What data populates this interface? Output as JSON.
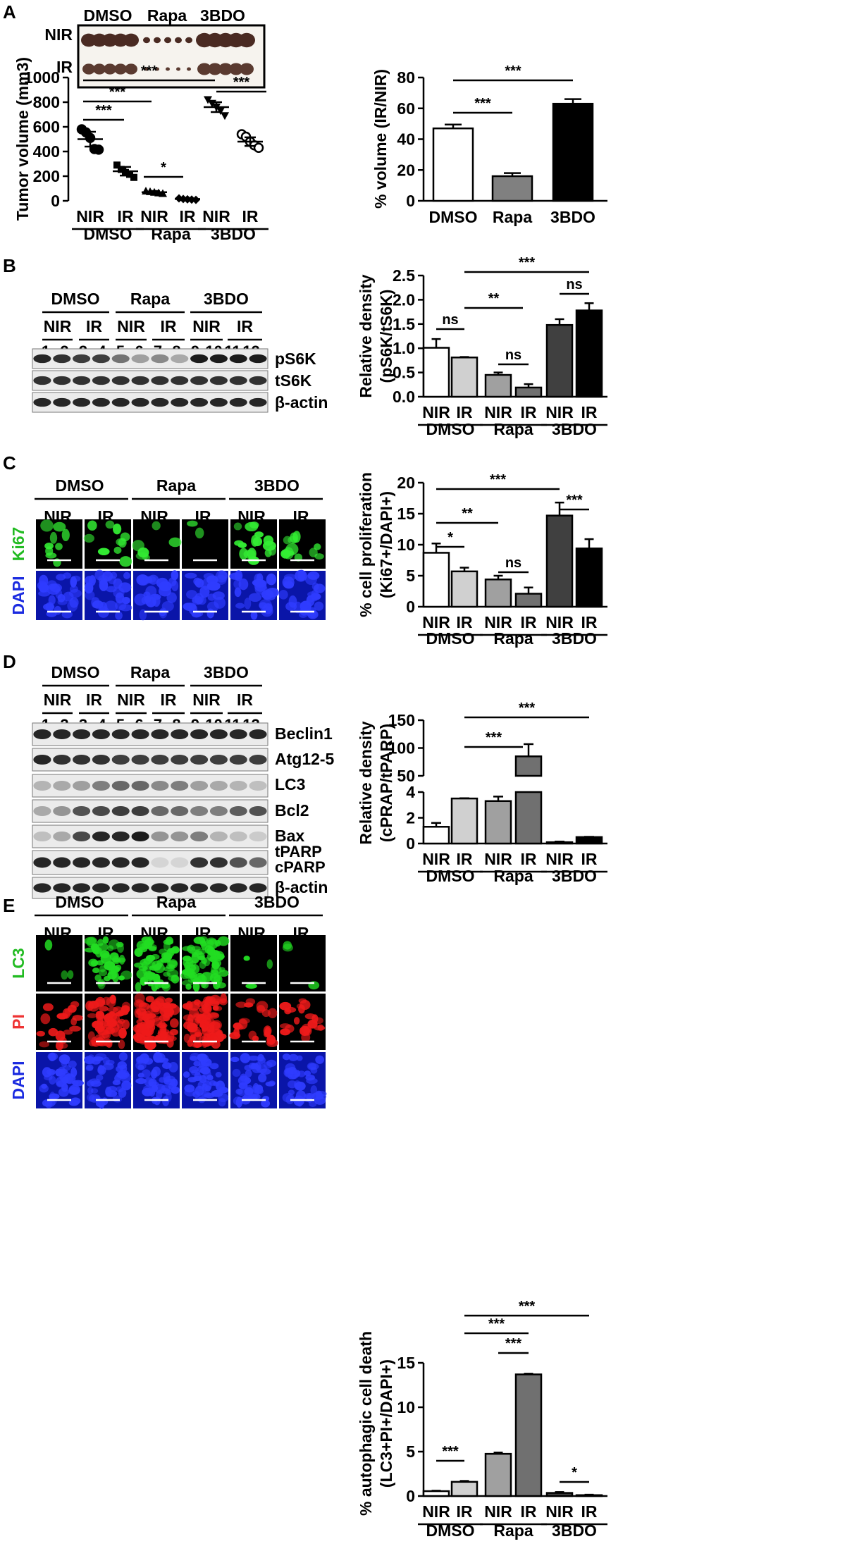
{
  "panels": {
    "A": {
      "letter": "A",
      "photo": {
        "groups": [
          "DMSO",
          "Rapa",
          "3BDO"
        ],
        "rows": [
          "NIR",
          "IR"
        ]
      },
      "scatter": {
        "ylabel": "Tumor volume (mm3)",
        "yticks": [
          "0",
          "200",
          "400",
          "600",
          "800",
          "1000"
        ],
        "xlabels": [
          "NIR",
          "IR",
          "NIR",
          "IR",
          "NIR",
          "IR"
        ],
        "groups": [
          "DMSO",
          "Rapa",
          "3BDO"
        ],
        "sig": [
          "***",
          "***",
          "***",
          "*",
          "***"
        ]
      },
      "bar": {
        "ylabel": "% volume (IR/NIR)",
        "yticks": [
          "0",
          "20",
          "40",
          "60",
          "80"
        ],
        "categories": [
          "DMSO",
          "Rapa",
          "3BDO"
        ],
        "sig": [
          "***",
          "***"
        ]
      }
    },
    "B": {
      "letter": "B",
      "blot": {
        "groups": [
          "DMSO",
          "Rapa",
          "3BDO"
        ],
        "sub": [
          "NIR",
          "IR",
          "NIR",
          "IR",
          "NIR",
          "IR"
        ],
        "lanes": [
          "1",
          "2",
          "3",
          "4",
          "5",
          "6",
          "7",
          "8",
          "9",
          "10",
          "11",
          "12"
        ],
        "bands": [
          "pS6K",
          "tS6K",
          "β-actin"
        ]
      },
      "bar": {
        "ylabel1": "Relative density",
        "ylabel2": "(pS6K/tS6K)",
        "yticks": [
          "0.0",
          "0.5",
          "1.0",
          "1.5",
          "2.0",
          "2.5"
        ],
        "xlabels": [
          "NIR",
          "IR",
          "NIR",
          "IR",
          "NIR",
          "IR"
        ],
        "groups": [
          "DMSO",
          "Rapa",
          "3BDO"
        ],
        "sig": [
          "ns",
          "**",
          "ns",
          "***",
          "ns"
        ]
      }
    },
    "C": {
      "letter": "C",
      "images": {
        "groups": [
          "DMSO",
          "Rapa",
          "3BDO"
        ],
        "sub": [
          "NIR",
          "IR",
          "NIR",
          "IR",
          "NIR",
          "IR"
        ],
        "rows": [
          "Ki67",
          "DAPI"
        ]
      },
      "bar": {
        "ylabel1": "% cell proliferation",
        "ylabel2": "(Ki67+/DAPI+)",
        "yticks": [
          "0",
          "5",
          "10",
          "15",
          "20"
        ],
        "xlabels": [
          "NIR",
          "IR",
          "NIR",
          "IR",
          "NIR",
          "IR"
        ],
        "groups": [
          "DMSO",
          "Rapa",
          "3BDO"
        ],
        "sig": [
          "*",
          "**",
          "ns",
          "***",
          "***"
        ]
      }
    },
    "D": {
      "letter": "D",
      "blot": {
        "groups": [
          "DMSO",
          "Rapa",
          "3BDO"
        ],
        "sub": [
          "NIR",
          "IR",
          "NIR",
          "IR",
          "NIR",
          "IR"
        ],
        "lanes": [
          "1",
          "2",
          "3",
          "4",
          "5",
          "6",
          "7",
          "8",
          "9",
          "10",
          "11",
          "12"
        ],
        "bands": [
          "Beclin1",
          "Atg12-5",
          "LC3",
          "Bcl2",
          "Bax",
          "tPARP",
          "cPARP",
          "β-actin"
        ]
      },
      "bar": {
        "ylabel1": "Relative density",
        "ylabel2": "(cPRAP/tPARP)",
        "yticks_low": [
          "0",
          "2",
          "4"
        ],
        "yticks_high": [
          "50",
          "100",
          "150"
        ],
        "xlabels": [
          "NIR",
          "IR",
          "NIR",
          "IR",
          "NIR",
          "IR"
        ],
        "groups": [
          "DMSO",
          "Rapa",
          "3BDO"
        ],
        "sig": [
          "***",
          "***"
        ]
      }
    },
    "E": {
      "letter": "E",
      "images": {
        "groups": [
          "DMSO",
          "Rapa",
          "3BDO"
        ],
        "sub": [
          "NIR",
          "IR",
          "NIR",
          "IR",
          "NIR",
          "IR"
        ],
        "rows": [
          "LC3",
          "PI",
          "DAPI"
        ]
      },
      "bar": {
        "ylabel1": "% autophagic cell death",
        "ylabel2": "(LC3+PI+/DAPI+)",
        "yticks": [
          "0",
          "5",
          "10",
          "15"
        ],
        "xlabels": [
          "NIR",
          "IR",
          "NIR",
          "IR",
          "NIR",
          "IR"
        ],
        "groups": [
          "DMSO",
          "Rapa",
          "3BDO"
        ],
        "sig": [
          "***",
          "***",
          "***",
          "***",
          "*"
        ]
      }
    }
  },
  "chart_data": [
    {
      "id": "A-scatter",
      "type": "scatter",
      "ylabel": "Tumor volume (mm3)",
      "ylim": [
        0,
        1000
      ],
      "categories": [
        "NIR",
        "IR",
        "NIR",
        "IR",
        "NIR",
        "IR"
      ],
      "groups": [
        "DMSO",
        "Rapa",
        "3BDO"
      ],
      "means": [
        500,
        240,
        70,
        15,
        760,
        480
      ],
      "errors": [
        60,
        35,
        10,
        8,
        40,
        35
      ],
      "points": [
        [
          580,
          555,
          510,
          420,
          415
        ],
        [
          290,
          255,
          230,
          215,
          190
        ],
        [
          80,
          75,
          70,
          65,
          60
        ],
        [
          20,
          15,
          12,
          10,
          8
        ],
        [
          820,
          790,
          760,
          730,
          690
        ],
        [
          540,
          520,
          480,
          450,
          430
        ]
      ],
      "markers": [
        "circle",
        "square",
        "triangle",
        "diamond",
        "triangle-down",
        "circle-open"
      ]
    },
    {
      "id": "A-bar",
      "type": "bar",
      "ylabel": "% volume (IR/NIR)",
      "ylim": [
        0,
        80
      ],
      "categories": [
        "DMSO",
        "Rapa",
        "3BDO"
      ],
      "values": [
        47,
        16,
        63
      ],
      "errors": [
        2.5,
        2.0,
        3.0
      ],
      "colors": [
        "#ffffff",
        "#808080",
        "#000000"
      ]
    },
    {
      "id": "B-bar",
      "type": "bar",
      "ylabel": "Relative density (pS6K/tS6K)",
      "ylim": [
        0,
        2.5
      ],
      "categories": [
        "NIR",
        "IR",
        "NIR",
        "IR",
        "NIR",
        "IR"
      ],
      "groups": [
        "DMSO",
        "Rapa",
        "3BDO"
      ],
      "values": [
        1.01,
        0.81,
        0.45,
        0.19,
        1.48,
        1.78
      ],
      "errors": [
        0.18,
        0.01,
        0.05,
        0.07,
        0.12,
        0.15
      ],
      "colors": [
        "#ffffff",
        "#d0d0d0",
        "#a0a0a0",
        "#707070",
        "#404040",
        "#000000"
      ]
    },
    {
      "id": "C-bar",
      "type": "bar",
      "ylabel": "% cell proliferation (Ki67+/DAPI+)",
      "ylim": [
        0,
        20
      ],
      "categories": [
        "NIR",
        "IR",
        "NIR",
        "IR",
        "NIR",
        "IR"
      ],
      "groups": [
        "DMSO",
        "Rapa",
        "3BDO"
      ],
      "values": [
        8.7,
        5.7,
        4.4,
        2.1,
        14.7,
        9.4
      ],
      "errors": [
        1.5,
        0.6,
        0.6,
        1.0,
        2.1,
        1.5
      ],
      "colors": [
        "#ffffff",
        "#d0d0d0",
        "#a0a0a0",
        "#707070",
        "#404040",
        "#000000"
      ]
    },
    {
      "id": "D-bar",
      "type": "bar",
      "ylabel": "Relative density (cPRAP/tPARP)",
      "ylim": [
        0,
        150
      ],
      "axis_break": [
        4,
        50
      ],
      "categories": [
        "NIR",
        "IR",
        "NIR",
        "IR",
        "NIR",
        "IR"
      ],
      "groups": [
        "DMSO",
        "Rapa",
        "3BDO"
      ],
      "values": [
        1.3,
        3.5,
        3.3,
        85,
        0.1,
        0.5
      ],
      "errors": [
        0.3,
        0.02,
        0.35,
        22,
        0.05,
        0.02
      ],
      "colors": [
        "#ffffff",
        "#d0d0d0",
        "#a0a0a0",
        "#707070",
        "#404040",
        "#000000"
      ]
    },
    {
      "id": "E-bar",
      "type": "bar",
      "ylabel": "% autophagic cell death (LC3+PI+/DAPI+)",
      "ylim": [
        0,
        15
      ],
      "categories": [
        "NIR",
        "IR",
        "NIR",
        "IR",
        "NIR",
        "IR"
      ],
      "groups": [
        "DMSO",
        "Rapa",
        "3BDO"
      ],
      "values": [
        0.55,
        1.6,
        4.75,
        13.7,
        0.35,
        0.1
      ],
      "errors": [
        0.05,
        0.1,
        0.15,
        0.08,
        0.1,
        0.05
      ],
      "colors": [
        "#ffffff",
        "#d0d0d0",
        "#a0a0a0",
        "#707070",
        "#404040",
        "#000000"
      ]
    }
  ]
}
